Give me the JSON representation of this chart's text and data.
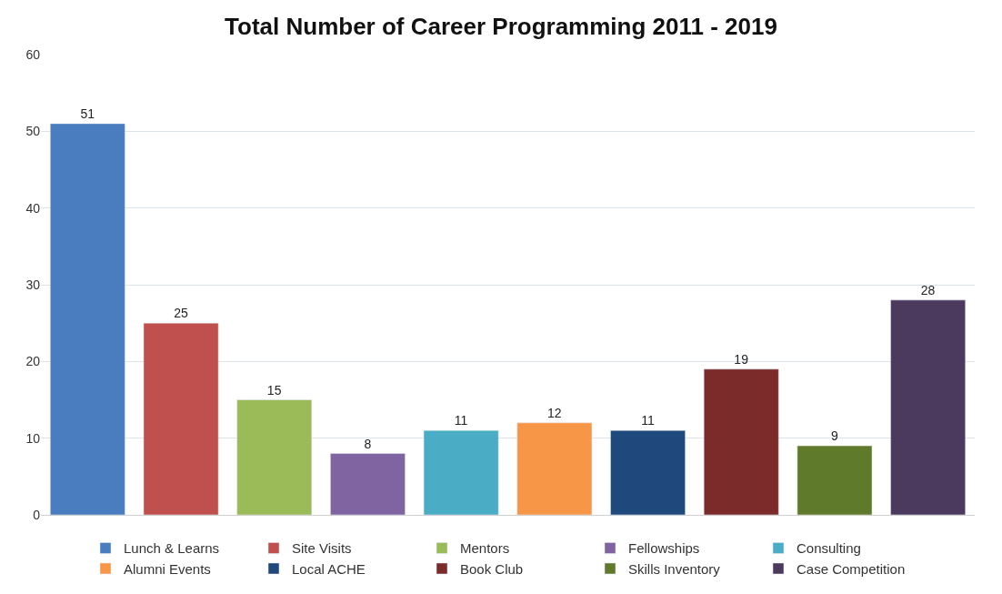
{
  "chart_data": {
    "type": "bar",
    "title": "Total Number of Career Programming 2011 - 2019",
    "categories": [
      null,
      null,
      null,
      null,
      null,
      null,
      null,
      null,
      null,
      null
    ],
    "series": [
      {
        "name": "Lunch & Learns",
        "color": "#4a7cc0",
        "values": [
          51,
          null,
          null,
          null,
          null,
          null,
          null,
          null,
          null,
          null
        ]
      },
      {
        "name": "Site Visits",
        "color": "#c0504d",
        "values": [
          null,
          25,
          null,
          null,
          null,
          null,
          null,
          null,
          null,
          null
        ]
      },
      {
        "name": "Mentors",
        "color": "#9bbb59",
        "values": [
          null,
          null,
          15,
          null,
          null,
          null,
          null,
          null,
          null,
          null
        ]
      },
      {
        "name": "Fellowships",
        "color": "#8064a2",
        "values": [
          null,
          null,
          null,
          8,
          null,
          null,
          null,
          null,
          null,
          null
        ]
      },
      {
        "name": "Consulting",
        "color": "#4bacc6",
        "values": [
          null,
          null,
          null,
          null,
          11,
          null,
          null,
          null,
          null,
          null
        ]
      },
      {
        "name": "Alumni Events",
        "color": "#f79646",
        "values": [
          null,
          null,
          null,
          null,
          null,
          12,
          null,
          null,
          null,
          null
        ]
      },
      {
        "name": "Local ACHE",
        "color": "#1f497d",
        "values": [
          null,
          null,
          null,
          null,
          null,
          null,
          11,
          null,
          null,
          null
        ]
      },
      {
        "name": "Book Club",
        "color": "#7b2c2a",
        "values": [
          null,
          null,
          null,
          null,
          null,
          null,
          null,
          19,
          null,
          null
        ]
      },
      {
        "name": "Skills Inventory",
        "color": "#5f7a2a",
        "values": [
          null,
          null,
          null,
          null,
          null,
          null,
          null,
          null,
          9,
          null
        ]
      },
      {
        "name": "Case Competition",
        "color": "#4b3a5e",
        "values": [
          null,
          null,
          null,
          null,
          null,
          null,
          null,
          null,
          null,
          28
        ]
      }
    ],
    "ylim": [
      0,
      60
    ],
    "yticks": [
      0,
      10,
      20,
      30,
      40,
      50,
      60
    ],
    "grid": "y",
    "legend": "bottom",
    "data_labels": true
  }
}
